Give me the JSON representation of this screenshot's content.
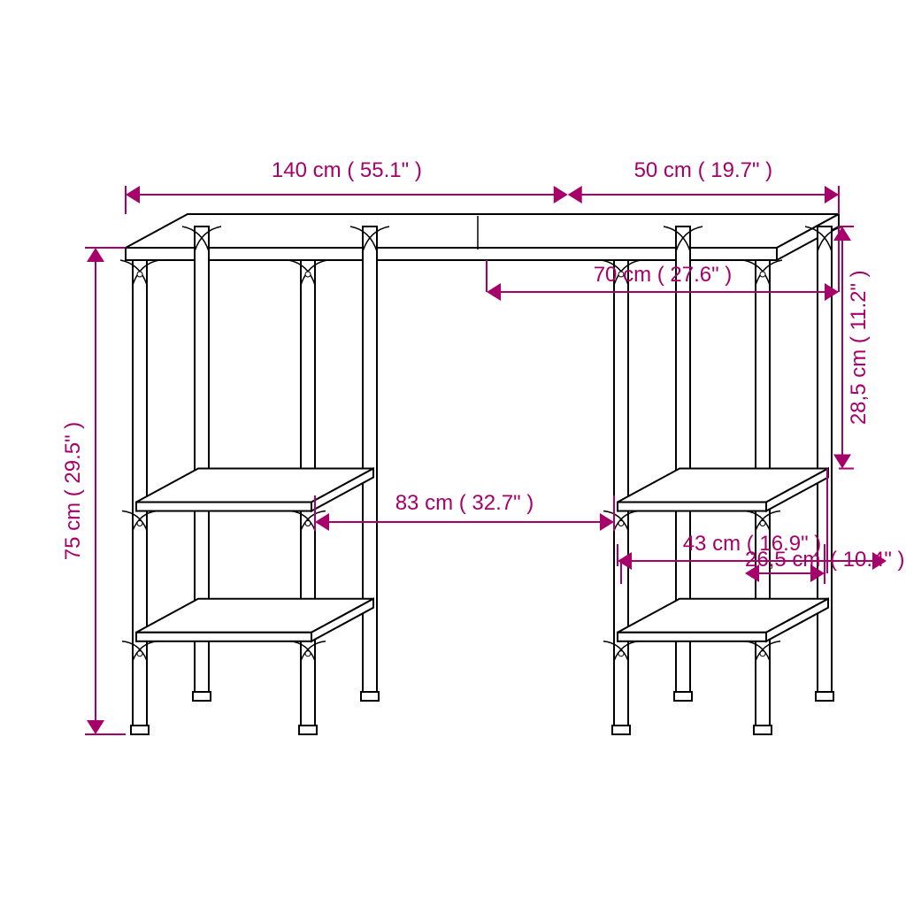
{
  "accent_color": "#a6006a",
  "dimensions": {
    "width_top": {
      "cm": "140 cm",
      "in": "55.1\""
    },
    "depth_top": {
      "cm": "50 cm",
      "in": "19.7\""
    },
    "height_left": {
      "cm": "75 cm",
      "in": "29.5\""
    },
    "inner_width_70": {
      "cm": "70 cm",
      "in": "27.6\""
    },
    "inner_width_83": {
      "cm": "83 cm",
      "in": "32.7\""
    },
    "shelf_depth_43": {
      "cm": "43 cm",
      "in": "16.9\""
    },
    "shelf_width_265": {
      "cm": "26,5 cm",
      "in": "10.4\""
    },
    "gap_285": {
      "cm": "28,5 cm",
      "in": "11.2\""
    }
  },
  "geometry_note": "Front/iso line drawing of a desk with two side shelf units (two shelves each), dimension callouts around it.",
  "stroke_color": "#000000",
  "background": "#ffffff"
}
